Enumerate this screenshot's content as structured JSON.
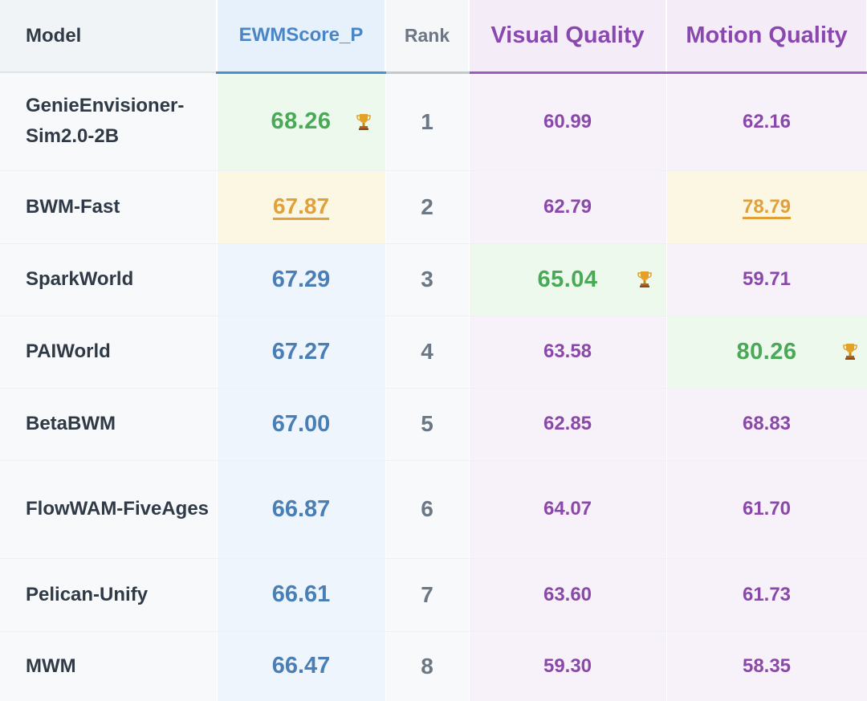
{
  "table": {
    "headers": {
      "model": "Model",
      "ewm": "EWMScore_P",
      "rank": "Rank",
      "visual": "Visual Quality",
      "motion": "Motion Quality"
    },
    "rows": [
      {
        "model": "GenieEnvisioner-Sim2.0-2B",
        "ewm": "68.26",
        "rank": "1",
        "visual": "60.99",
        "motion": "62.16"
      },
      {
        "model": "BWM-Fast",
        "ewm": "67.87",
        "rank": "2",
        "visual": "62.79",
        "motion": "78.79"
      },
      {
        "model": "SparkWorld",
        "ewm": "67.29",
        "rank": "3",
        "visual": "65.04",
        "motion": "59.71"
      },
      {
        "model": "PAIWorld",
        "ewm": "67.27",
        "rank": "4",
        "visual": "63.58",
        "motion": "80.26"
      },
      {
        "model": "BetaBWM",
        "ewm": "67.00",
        "rank": "5",
        "visual": "62.85",
        "motion": "68.83"
      },
      {
        "model": "FlowWAM-FiveAges",
        "ewm": "66.87",
        "rank": "6",
        "visual": "64.07",
        "motion": "61.70"
      },
      {
        "model": "Pelican-Unify",
        "ewm": "66.61",
        "rank": "7",
        "visual": "63.60",
        "motion": "61.73"
      },
      {
        "model": "MWM",
        "ewm": "66.47",
        "rank": "8",
        "visual": "59.30",
        "motion": "58.35"
      }
    ]
  },
  "highlights": {
    "best_icon": "trophy-icon",
    "best_color": "#4aa957",
    "best_bg": "#eef9ee",
    "second_color": "#e0a03a",
    "second_bg": "#fcf7e3",
    "accent_ewm": "#4a7fb6",
    "accent_quality": "#8a48a8"
  }
}
